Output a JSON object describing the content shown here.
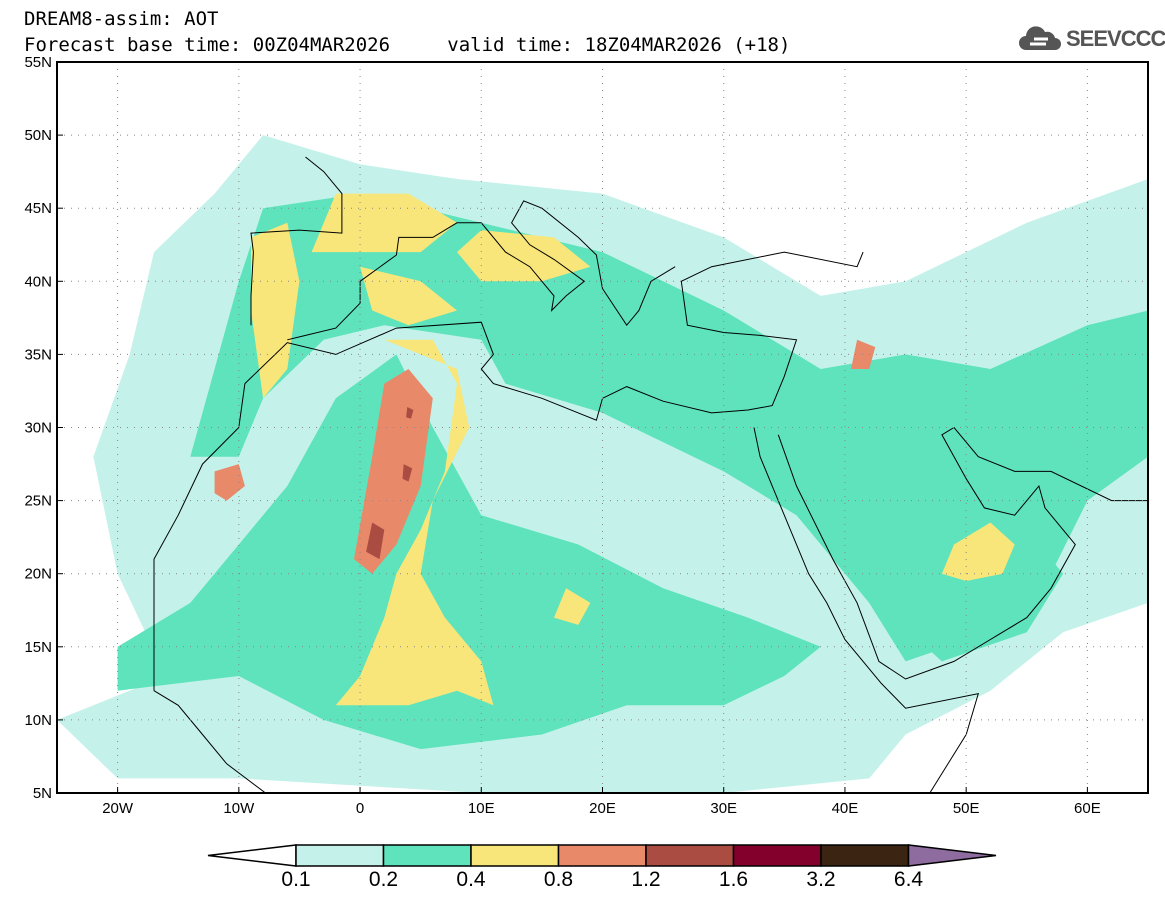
{
  "header": {
    "title": "DREAM8-assim: AOT",
    "base_time": "Forecast base time: 00Z04MAR2026",
    "valid_time": "valid time: 18Z04MAR2026 (+18)"
  },
  "logo": {
    "text": "SEEVCCC"
  },
  "axes": {
    "lat_labels": [
      "55N",
      "50N",
      "45N",
      "40N",
      "35N",
      "30N",
      "25N",
      "20N",
      "15N",
      "10N",
      "5N"
    ],
    "lon_labels": [
      "20W",
      "10W",
      "0",
      "10E",
      "20E",
      "30E",
      "40E",
      "50E",
      "60E"
    ]
  },
  "colorbar": {
    "levels": [
      "0.1",
      "0.2",
      "0.4",
      "0.8",
      "1.2",
      "1.6",
      "3.2",
      "6.4"
    ],
    "colors": [
      "#ffffff",
      "#c4f2ea",
      "#5ee3bc",
      "#f8e67a",
      "#e8896a",
      "#ab4c43",
      "#83002c",
      "#3b2412",
      "#8e6ca0"
    ]
  }
}
